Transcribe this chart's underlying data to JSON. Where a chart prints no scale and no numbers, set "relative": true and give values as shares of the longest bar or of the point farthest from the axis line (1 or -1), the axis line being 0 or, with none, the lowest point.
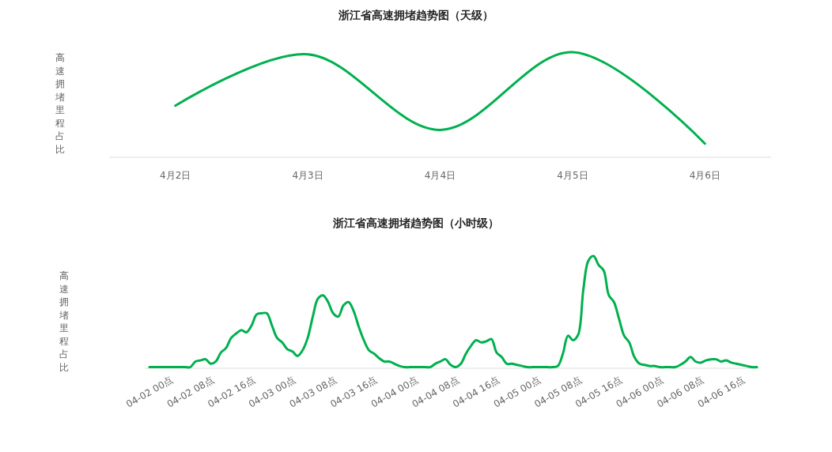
{
  "chart_data": [
    {
      "type": "line",
      "title": "浙江省高速拥堵趋势图（天级）",
      "ylabel": "高速拥堵里程占比",
      "relative": true,
      "categories": [
        "4月2日",
        "4月3日",
        "4月4日",
        "4月5日",
        "4月6日"
      ],
      "series": [
        {
          "color": "#00b04f",
          "values": [
            0.49,
            0.98,
            0.26,
            1,
            0.13
          ]
        }
      ]
    },
    {
      "type": "line",
      "title": "浙江省高速拥堵趋势图（小时级）",
      "ylabel": "高速拥堵里程占比",
      "relative": true,
      "categories": [
        "04-02 00点",
        null,
        null,
        null,
        null,
        null,
        null,
        null,
        "04-02 08点",
        null,
        null,
        null,
        null,
        null,
        null,
        null,
        "04-02 16点",
        null,
        null,
        null,
        null,
        null,
        null,
        null,
        "04-03 00点",
        null,
        null,
        null,
        null,
        null,
        null,
        null,
        "04-03 08点",
        null,
        null,
        null,
        null,
        null,
        null,
        null,
        "04-03 16点",
        null,
        null,
        null,
        null,
        null,
        null,
        null,
        "04-04 00点",
        null,
        null,
        null,
        null,
        null,
        null,
        null,
        "04-04 08点",
        null,
        null,
        null,
        null,
        null,
        null,
        null,
        "04-04 16点",
        null,
        null,
        null,
        null,
        null,
        null,
        null,
        "04-05 00点",
        null,
        null,
        null,
        null,
        null,
        null,
        null,
        "04-05 08点",
        null,
        null,
        null,
        null,
        null,
        null,
        null,
        "04-05 16点",
        null,
        null,
        null,
        null,
        null,
        null,
        null,
        "04-06 00点",
        null,
        null,
        null,
        null,
        null,
        null,
        null,
        "04-06 08点",
        null,
        null,
        null,
        null,
        null,
        null,
        null,
        "04-06 16点",
        null,
        null,
        null,
        null,
        null,
        null,
        null
      ],
      "series": [
        {
          "color": "#00b04f",
          "values": [
            0.01,
            0.01,
            0.01,
            0.01,
            0.01,
            0.01,
            0.01,
            0.01,
            0.01,
            0.06,
            0.07,
            0.08,
            0.04,
            0.06,
            0.14,
            0.18,
            0.27,
            0.31,
            0.34,
            0.32,
            0.38,
            0.48,
            0.49,
            0.49,
            0.38,
            0.27,
            0.23,
            0.17,
            0.15,
            0.11,
            0.16,
            0.27,
            0.46,
            0.62,
            0.65,
            0.59,
            0.49,
            0.46,
            0.56,
            0.59,
            0.51,
            0.37,
            0.25,
            0.16,
            0.13,
            0.09,
            0.06,
            0.06,
            0.04,
            0.02,
            0.01,
            0.01,
            0.01,
            0.01,
            0.01,
            0.01,
            0.04,
            0.06,
            0.08,
            0.03,
            0.01,
            0.04,
            0.13,
            0.2,
            0.25,
            0.23,
            0.24,
            0.26,
            0.14,
            0.1,
            0.04,
            0.04,
            0.03,
            0.02,
            0.01,
            0.01,
            0.01,
            0.01,
            0.01,
            0.01,
            0.02,
            0.13,
            0.29,
            0.25,
            0.3,
            0.7,
            0.96,
            1,
            0.92,
            0.87,
            0.65,
            0.59,
            0.44,
            0.29,
            0.23,
            0.1,
            0.04,
            0.03,
            0.02,
            0.02,
            0.01,
            0.01,
            0.01,
            0.01,
            0.03,
            0.06,
            0.1,
            0.06,
            0.05,
            0.07,
            0.08,
            0.08,
            0.06,
            0.07,
            0.05,
            0.04,
            0.03,
            0.02,
            0.01,
            0.01
          ]
        }
      ]
    }
  ]
}
